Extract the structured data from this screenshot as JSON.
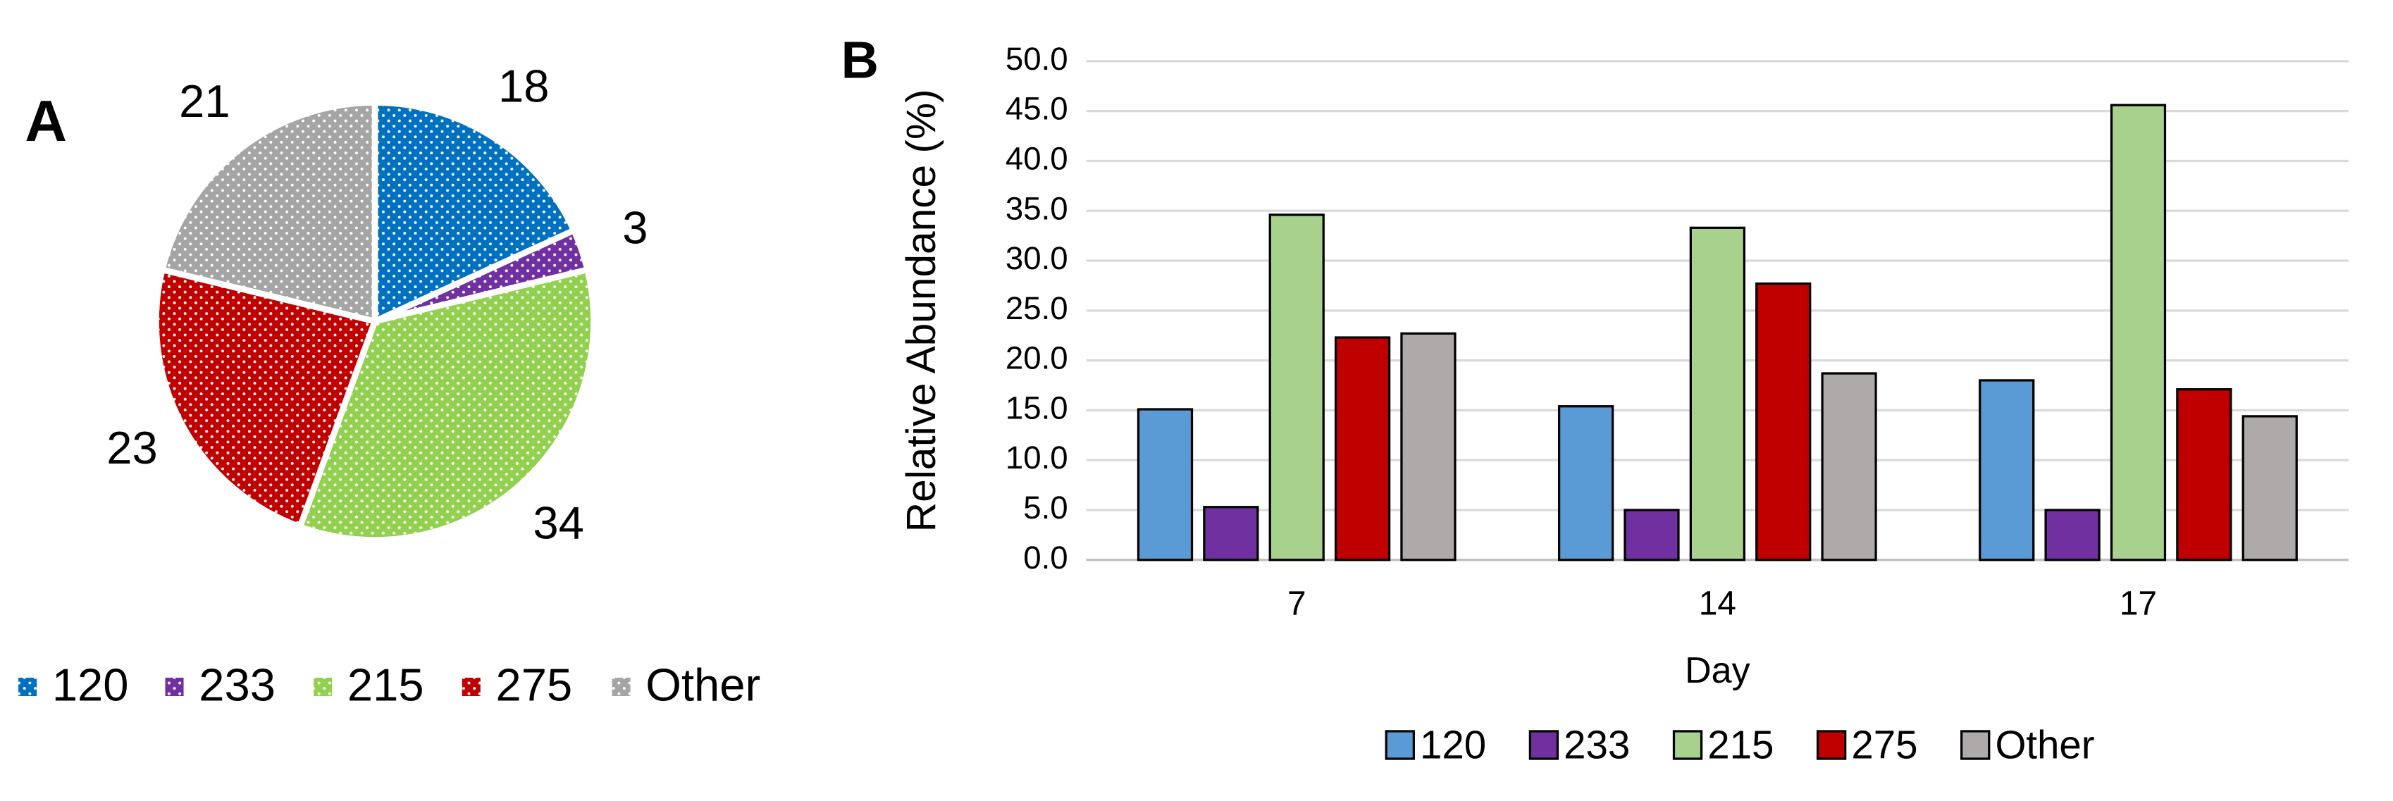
{
  "chart_data": [
    {
      "type": "pie",
      "panel_label": "A",
      "categories": [
        "120",
        "233",
        "215",
        "275",
        "Other"
      ],
      "values": [
        18,
        3,
        34,
        23,
        21
      ],
      "colors": [
        "#0070c0",
        "#7030a0",
        "#92d050",
        "#c00000",
        "#a5a5a5"
      ],
      "legend": "bottom"
    },
    {
      "type": "bar",
      "panel_label": "B",
      "x_label": "Day",
      "y_label": "Relative Abundance (%)",
      "categories": [
        "7",
        "14",
        "17"
      ],
      "series": [
        {
          "name": "120",
          "color": "#5b9bd5",
          "values": [
            15.1,
            15.4,
            18.0
          ]
        },
        {
          "name": "233",
          "color": "#7030a0",
          "values": [
            5.3,
            5.0,
            5.0
          ]
        },
        {
          "name": "215",
          "color": "#a9d18e",
          "values": [
            34.6,
            33.3,
            45.6
          ]
        },
        {
          "name": "275",
          "color": "#c00000",
          "values": [
            22.3,
            27.7,
            17.1
          ]
        },
        {
          "name": "Other",
          "color": "#aeaaaa",
          "values": [
            22.7,
            18.7,
            14.4
          ]
        }
      ],
      "ylim": [
        0,
        50
      ],
      "yticks": [
        {
          "value": 0,
          "label": "0.0"
        },
        {
          "value": 5,
          "label": "5.0"
        },
        {
          "value": 10,
          "label": "10.0"
        },
        {
          "value": 15,
          "label": "15.0"
        },
        {
          "value": 20,
          "label": "20.0"
        },
        {
          "value": 25,
          "label": "25.0"
        },
        {
          "value": 30,
          "label": "30.0"
        },
        {
          "value": 35,
          "label": "35.0"
        },
        {
          "value": 40,
          "label": "40.0"
        },
        {
          "value": 45,
          "label": "45.0"
        },
        {
          "value": 50,
          "label": "50.0"
        }
      ],
      "grid": true,
      "legend": "bottom"
    }
  ]
}
